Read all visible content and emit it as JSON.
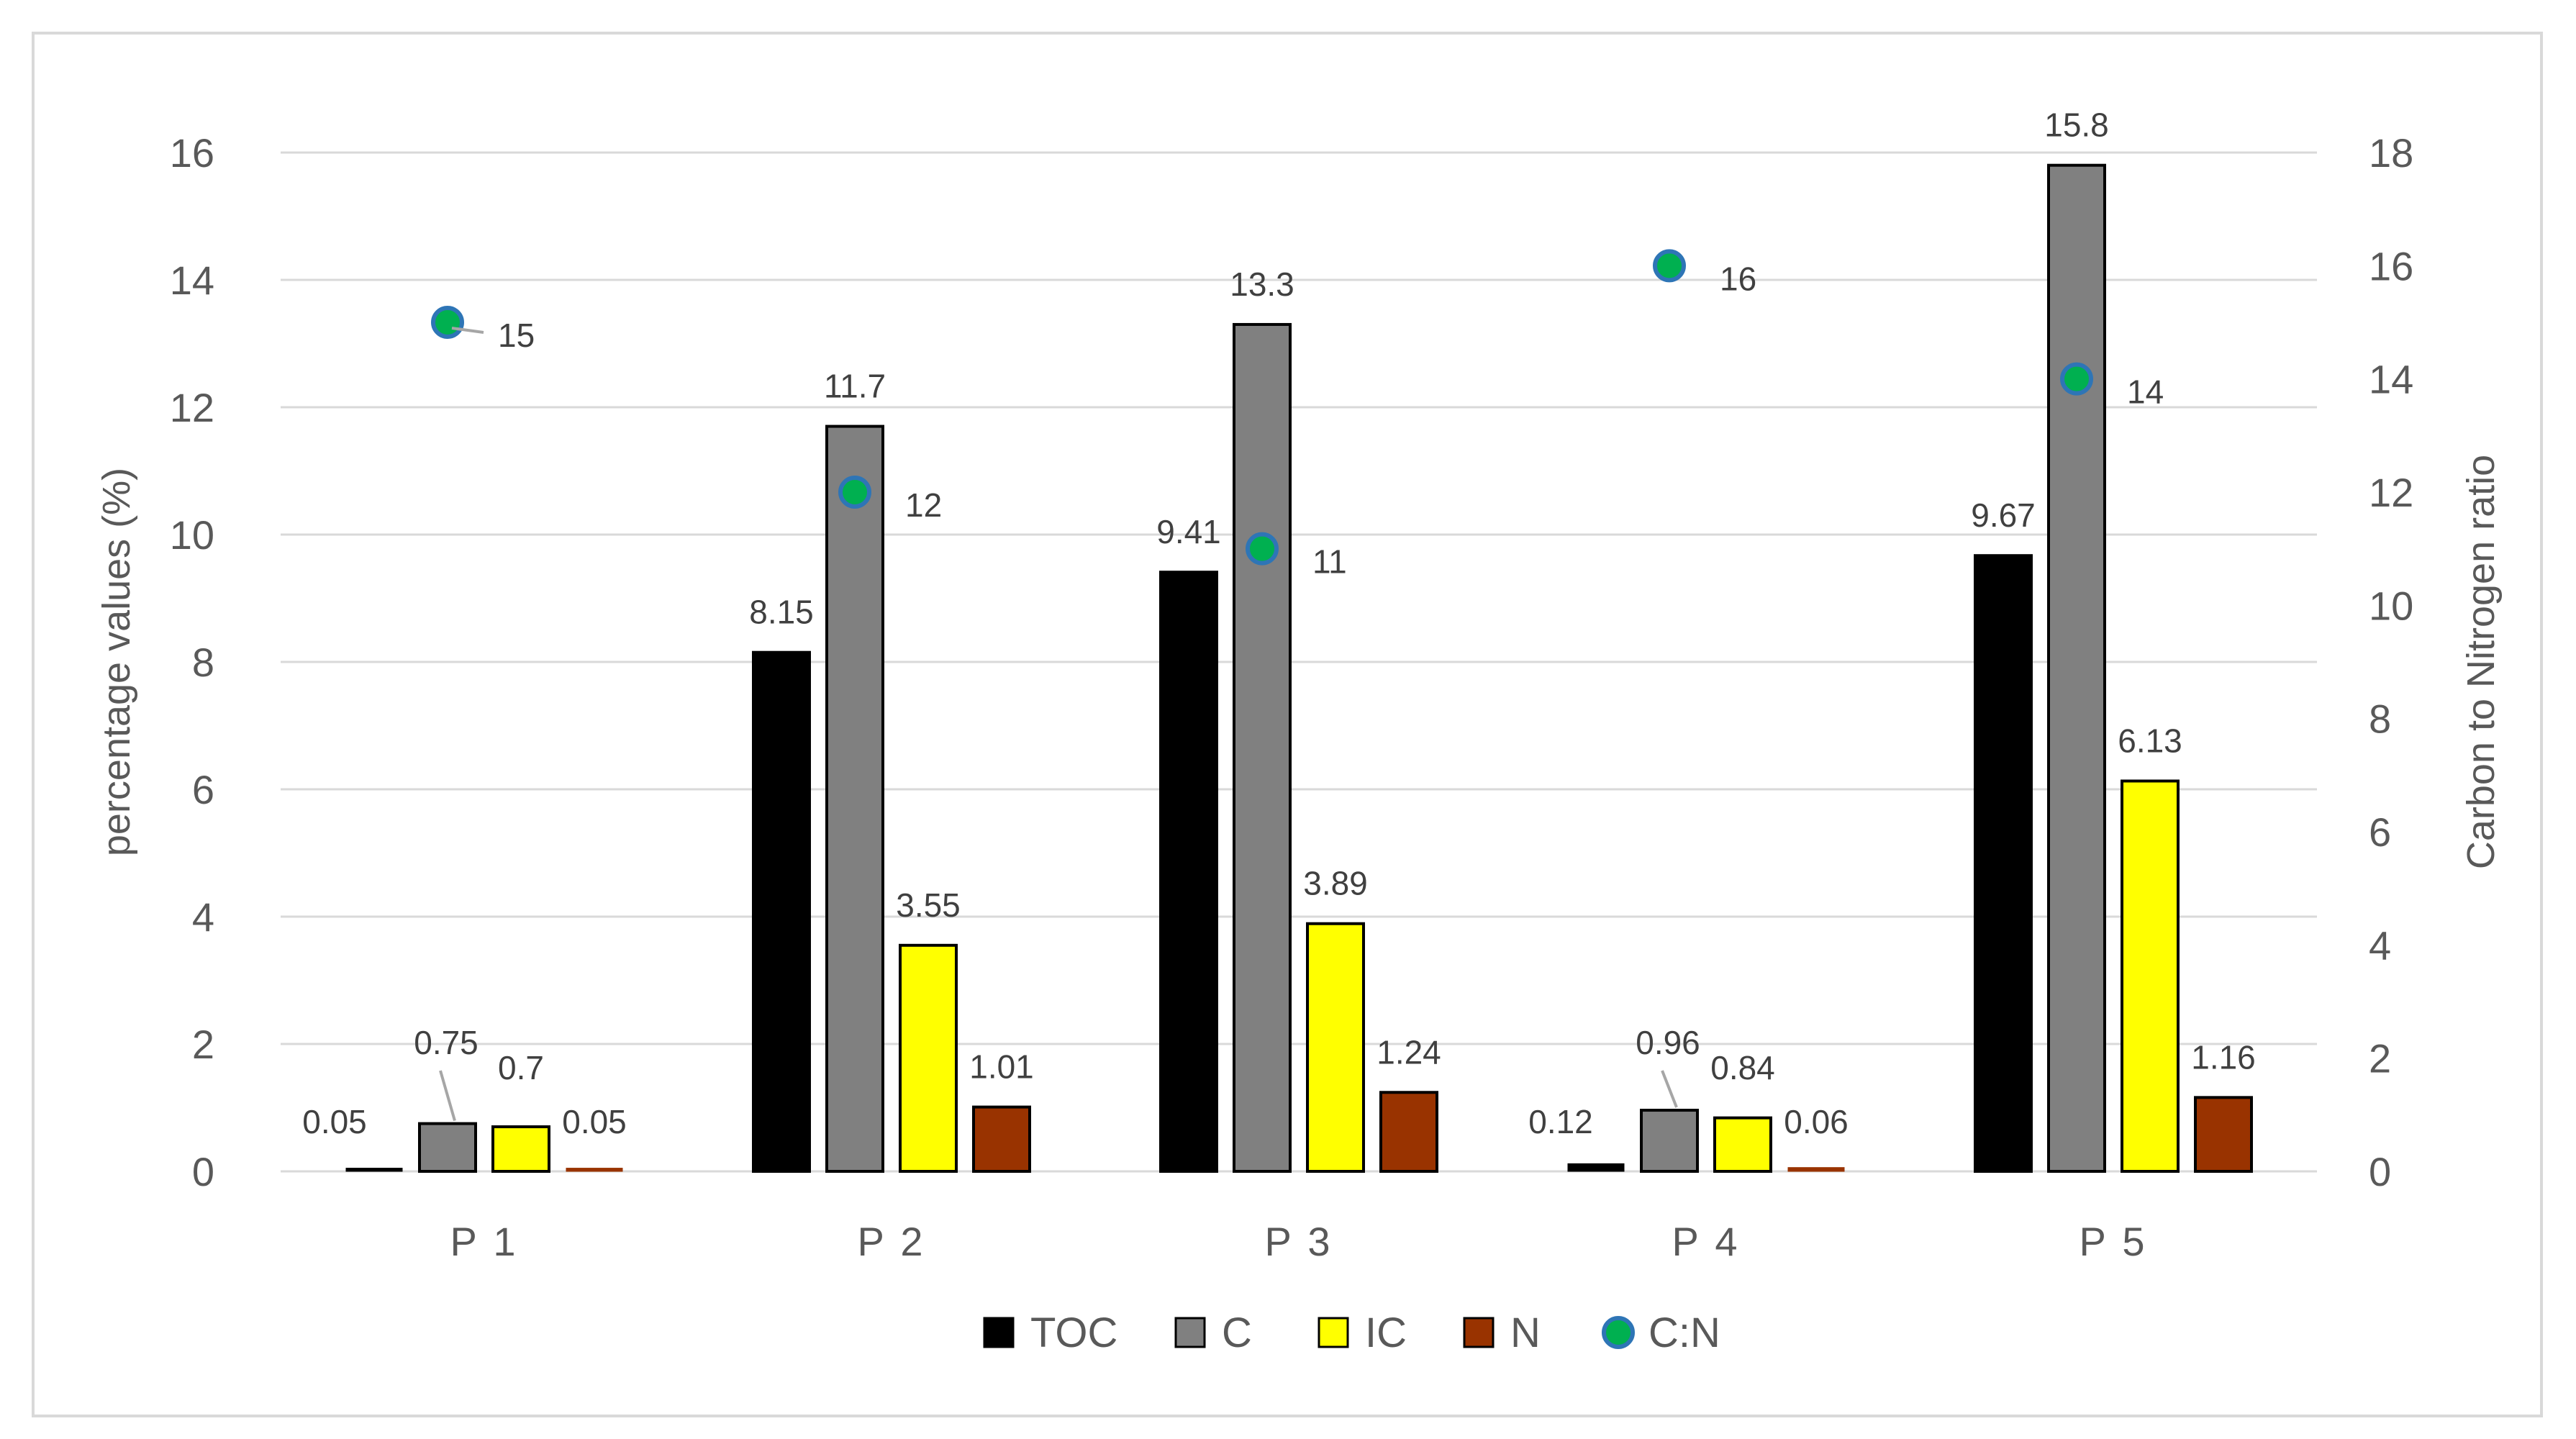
{
  "chart_data": {
    "type": "bar",
    "categories": [
      "P 1",
      "P 2",
      "P 3",
      "P 4",
      "P 5"
    ],
    "series": [
      {
        "name": "TOC",
        "axis": "left",
        "color": "#000000",
        "values": [
          0.05,
          8.15,
          9.41,
          0.12,
          9.67
        ],
        "labels": [
          "0.05",
          "8.15",
          "9.41",
          "0.12",
          "9.67"
        ]
      },
      {
        "name": "C",
        "axis": "left",
        "color": "#808080",
        "values": [
          0.75,
          11.7,
          13.3,
          0.96,
          15.8
        ],
        "labels": [
          "0.75",
          "11.7",
          "13.3",
          "0.96",
          "15.8"
        ]
      },
      {
        "name": "IC",
        "axis": "left",
        "color": "#ffff00",
        "values": [
          0.7,
          3.55,
          3.89,
          0.84,
          6.13
        ],
        "labels": [
          "0.7",
          "3.55",
          "3.89",
          "0.84",
          "6.13"
        ]
      },
      {
        "name": "N",
        "axis": "left",
        "color": "#993300",
        "values": [
          0.05,
          1.01,
          1.24,
          0.06,
          1.16
        ],
        "labels": [
          "0.05",
          "1.01",
          "1.24",
          "0.06",
          "1.16"
        ]
      },
      {
        "name": "C:N",
        "axis": "right",
        "marker": "circle",
        "color": "#00b050",
        "edge_color": "#2e75b6",
        "values": [
          15,
          12,
          11,
          16,
          14
        ],
        "labels": [
          "15",
          "12",
          "11",
          "16",
          "14"
        ]
      }
    ],
    "ylabel": "percentage values (%)",
    "ylabel_right": "Carbon to Nitrogen ratio",
    "ylim": [
      0,
      16
    ],
    "yticks": [
      "0",
      "2",
      "4",
      "6",
      "8",
      "10",
      "12",
      "14",
      "16"
    ],
    "ylim_right": [
      0,
      18
    ],
    "yticks_right": [
      "0",
      "2",
      "4",
      "6",
      "8",
      "10",
      "12",
      "14",
      "16",
      "18"
    ],
    "grid": true,
    "legend_position": "bottom"
  }
}
